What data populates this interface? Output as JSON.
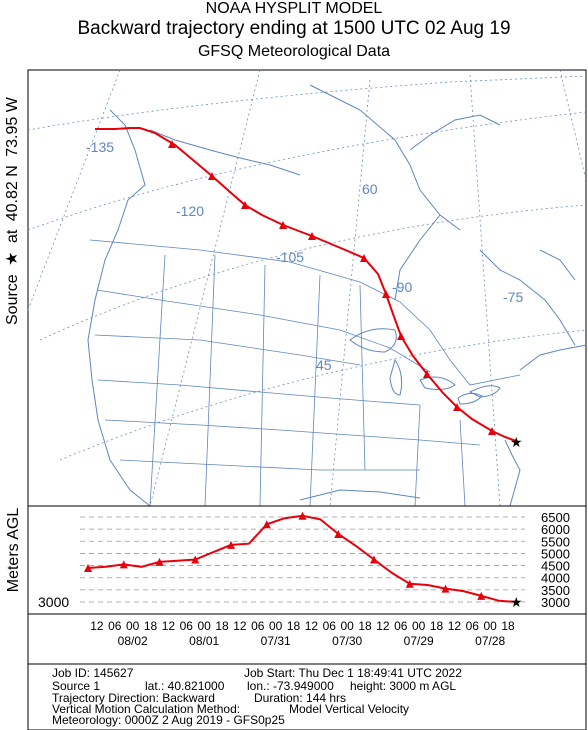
{
  "header": {
    "line1": "NOAA HYSPLIT MODEL",
    "line2": "Backward trajectory ending at 1500 UTC 02 Aug 19",
    "line3": "GFSQ Meteorological Data"
  },
  "side_label": {
    "source": "Source",
    "star": "★",
    "at": "at",
    "lat": "40.82 N",
    "lon": "73.95 W"
  },
  "map": {
    "longitude_labels": [
      "-135",
      "-120",
      "-105",
      "-90",
      "-75"
    ],
    "latitude_labels": [
      "60",
      "45"
    ]
  },
  "chart_data": {
    "type": "line",
    "series": [
      {
        "hours_back": [
          0,
          6,
          12,
          18,
          24,
          30,
          36,
          42,
          48,
          54,
          60,
          66,
          72,
          78,
          84,
          90,
          96,
          102,
          108,
          114,
          120,
          126,
          132,
          138,
          144
        ],
        "height_m_agl": [
          3000,
          3050,
          3250,
          3450,
          3550,
          3700,
          3750,
          4200,
          4750,
          5300,
          5800,
          6400,
          6550,
          6450,
          6200,
          5400,
          5350,
          5050,
          4750,
          4700,
          4650,
          4450,
          4550,
          4450,
          4400
        ]
      }
    ],
    "y_ticks": [
      "6500",
      "6000",
      "5500",
      "5000",
      "4500",
      "4000",
      "3500",
      "3000"
    ],
    "start_height_label": "3000",
    "ylabel": "Meters AGL",
    "hour_ticks": [
      "12",
      "06",
      "00",
      "18",
      "12",
      "06",
      "00",
      "18",
      "12",
      "06",
      "00",
      "18",
      "12",
      "06",
      "00",
      "18",
      "12",
      "06",
      "00",
      "18",
      "12",
      "06",
      "00",
      "18"
    ],
    "date_labels": [
      "08/02",
      "08/01",
      "07/31",
      "07/30",
      "07/29",
      "07/28"
    ],
    "line_color": "#e8000b"
  },
  "info": {
    "job_id": "Job ID: 145627",
    "job_start": "Job Start: Thu Dec  1 18:49:41 UTC 2022",
    "source": "Source 1",
    "lat": "lat.: 40.821000",
    "lon": "lon.: -73.949000",
    "height": "height: 3000 m AGL",
    "direction": "Trajectory Direction: Backward",
    "duration": "Duration: 144 hrs",
    "vertical_method": "Vertical Motion Calculation Method:",
    "vertical_value": "Model Vertical Velocity",
    "meteorology": "Meteorology: 0000Z  2 Aug 2019 - GFS0p25"
  }
}
